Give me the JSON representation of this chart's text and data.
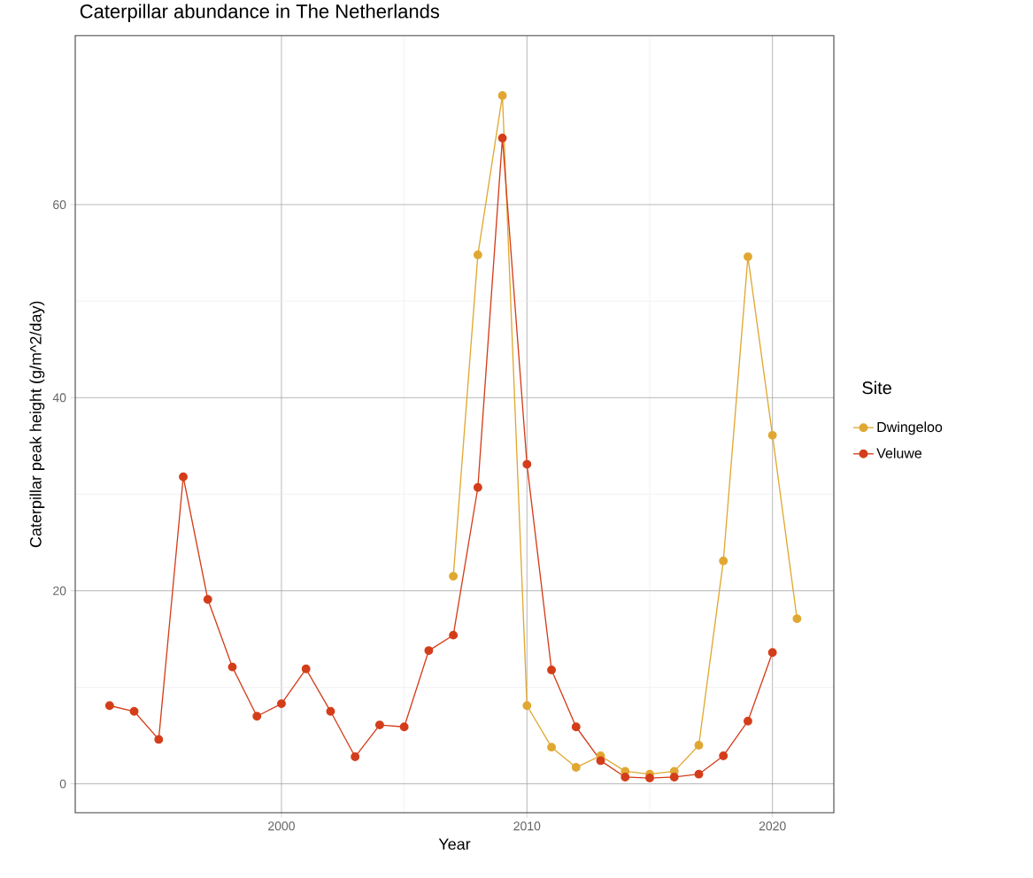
{
  "chart_data": {
    "type": "line",
    "title": "Caterpillar abundance in The Netherlands",
    "xlabel": "Year",
    "ylabel": "Caterpillar peak height (g/m^2/day)",
    "legend_title": "Site",
    "legend": "right",
    "grid": true,
    "marker": "circle",
    "xlim": [
      1991.6,
      2022.5
    ],
    "ylim": [
      -3.0,
      77.5
    ],
    "xticks": [
      2000,
      2010,
      2020
    ],
    "yticks": [
      0,
      20,
      40,
      60
    ],
    "series": [
      {
        "name": "Dwingeloo",
        "color": "#e0a832",
        "x": [
          2007,
          2008,
          2009,
          2010,
          2011,
          2012,
          2013,
          2014,
          2015,
          2016,
          2017,
          2018,
          2019,
          2020,
          2021
        ],
        "values": [
          21.5,
          54.8,
          71.3,
          8.1,
          3.8,
          1.7,
          2.9,
          1.3,
          1.0,
          1.3,
          4.0,
          23.1,
          54.6,
          36.1,
          17.1
        ]
      },
      {
        "name": "Veluwe",
        "color": "#d43d1a",
        "x": [
          1993,
          1994,
          1995,
          1996,
          1997,
          1998,
          1999,
          2000,
          2001,
          2002,
          2003,
          2004,
          2005,
          2006,
          2007,
          2008,
          2009,
          2010,
          2011,
          2012,
          2013,
          2014,
          2015,
          2016,
          2017,
          2018,
          2019,
          2020
        ],
        "values": [
          8.1,
          7.5,
          4.6,
          31.8,
          19.1,
          12.1,
          7.0,
          8.3,
          11.9,
          7.5,
          2.8,
          6.1,
          5.9,
          13.8,
          15.4,
          30.7,
          66.9,
          33.1,
          11.8,
          5.9,
          2.4,
          0.7,
          0.6,
          0.7,
          1.0,
          2.9,
          6.5,
          13.6
        ]
      }
    ]
  }
}
